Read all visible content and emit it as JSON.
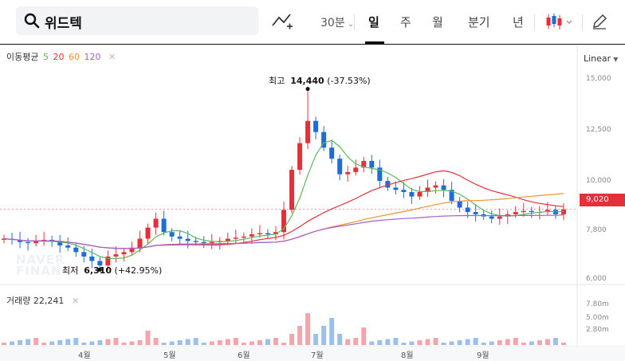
{
  "search": {
    "value": "위드텍"
  },
  "toolbar": {
    "interval": "30분",
    "tabs": [
      "일",
      "주",
      "월",
      "분기",
      "년"
    ],
    "active_tab": "일"
  },
  "chart": {
    "ma_legend": {
      "label": "이동평균",
      "values": [
        "5",
        "20",
        "60",
        "120"
      ]
    },
    "scale_type": "Linear",
    "y_ticks": [
      "15,000",
      "12,500",
      "10,000",
      "7,800",
      "6,000"
    ],
    "vol_ticks": [
      "7.80m",
      "5.00m",
      "2.80m"
    ],
    "months": [
      "4월",
      "5월",
      "6월",
      "7월",
      "8월",
      "9월"
    ],
    "current_price": "9,020",
    "high": {
      "label": "최고",
      "value": "14,440",
      "pct": "(-37.53%)"
    },
    "low": {
      "label": "최저",
      "value": "6,310",
      "pct": "(+42.95%)"
    },
    "volume": {
      "label": "거래량",
      "value": "22,241"
    },
    "watermark": [
      "NAVER",
      "FINANCE"
    ]
  },
  "colors": {
    "up": "#e5303b",
    "down": "#1a6ed8",
    "ma5": "#5cb85c",
    "ma20": "#e5303b",
    "ma60": "#f0922b",
    "ma120": "#a45fd0"
  },
  "chart_data": {
    "type": "candlestick",
    "y_range": [
      6000,
      15500
    ],
    "series_close_approx": [
      7700,
      7650,
      7550,
      7500,
      7600,
      7650,
      7600,
      7400,
      7300,
      7100,
      6900,
      6700,
      6500,
      6900,
      7000,
      7100,
      7300,
      7700,
      8200,
      8600,
      8000,
      7800,
      7700,
      7600,
      7550,
      7500,
      7550,
      7600,
      7700,
      7750,
      7800,
      7900,
      7950,
      7900,
      8000,
      9000,
      10800,
      12000,
      13000,
      12500,
      11800,
      11300,
      10600,
      10700,
      10900,
      11200,
      10900,
      10300,
      10000,
      9900,
      9800,
      9600,
      9800,
      10000,
      10100,
      9900,
      9400,
      9100,
      8900,
      8800,
      8700,
      8600,
      8700,
      8800,
      8900,
      8950,
      8900,
      8900,
      9000,
      8800,
      9020
    ],
    "high_point": {
      "value": 14440,
      "pct": -37.53
    },
    "low_point": {
      "value": 6310,
      "pct": 42.95
    },
    "current_price": 9020
  }
}
